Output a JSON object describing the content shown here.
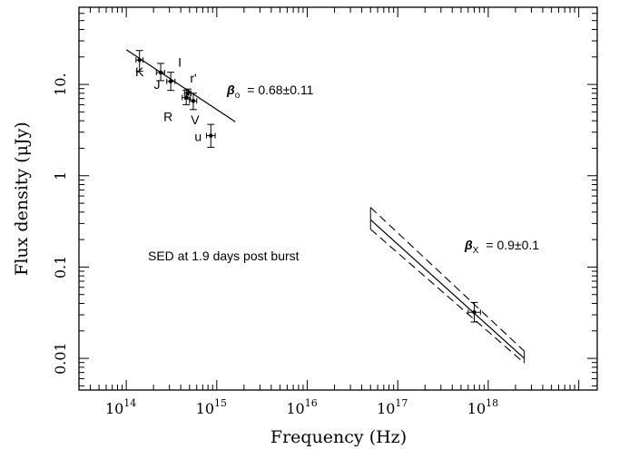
{
  "chart_data": {
    "type": "scatter",
    "title": "",
    "xlabel": "Frequency (Hz)",
    "ylabel": "Flux density (μJy)",
    "x_scale": "log",
    "y_scale": "log",
    "xlim": [
      30000000000000.0,
      1.6e+19
    ],
    "ylim": [
      0.0045,
      70
    ],
    "grid": false,
    "x_ticks": [
      {
        "value": 100000000000000.0,
        "base": "10",
        "exp": "14"
      },
      {
        "value": 1000000000000000.0,
        "base": "10",
        "exp": "15"
      },
      {
        "value": 1e+16,
        "base": "10",
        "exp": "16"
      },
      {
        "value": 1e+17,
        "base": "10",
        "exp": "17"
      },
      {
        "value": 1e+18,
        "base": "10",
        "exp": "18"
      }
    ],
    "y_ticks": [
      {
        "value": 0.01,
        "label": "0.01"
      },
      {
        "value": 0.1,
        "label": "0.1"
      },
      {
        "value": 1,
        "label": "1"
      },
      {
        "value": 10,
        "label": "10."
      }
    ],
    "points": [
      {
        "band": "K",
        "x": 140000000000000.0,
        "y": 18.5,
        "y_lo": 14.0,
        "y_hi": 23.5,
        "x_lo": 128000000000000.0,
        "x_hi": 153000000000000.0
      },
      {
        "band": "J",
        "x": 240000000000000.0,
        "y": 13.5,
        "y_lo": 11.0,
        "y_hi": 17.0,
        "x_lo": 215000000000000.0,
        "x_hi": 265000000000000.0
      },
      {
        "band": "I",
        "x": 310000000000000.0,
        "y": 10.8,
        "y_lo": 8.6,
        "y_hi": 13.6,
        "x_lo": 280000000000000.0,
        "x_hi": 345000000000000.0
      },
      {
        "band": "R",
        "x": 460000000000000.0,
        "y": 7.2,
        "y_lo": 6.0,
        "y_hi": 8.6,
        "x_lo": 415000000000000.0,
        "x_hi": 510000000000000.0
      },
      {
        "band": "r'",
        "x": 480000000000000.0,
        "y": 8.0,
        "y_lo": 6.9,
        "y_hi": 8.9,
        "x_lo": 440000000000000.0,
        "x_hi": 520000000000000.0
      },
      {
        "band": "V",
        "x": 550000000000000.0,
        "y": 6.6,
        "y_lo": 5.3,
        "y_hi": 8.0,
        "x_lo": 500000000000000.0,
        "x_hi": 600000000000000.0
      },
      {
        "band": "u",
        "x": 860000000000000.0,
        "y": 2.75,
        "y_lo": 2.05,
        "y_hi": 3.65,
        "x_lo": 770000000000000.0,
        "x_hi": 960000000000000.0
      },
      {
        "band": "",
        "x": 7e+17,
        "y": 0.032,
        "y_lo": 0.025,
        "y_hi": 0.041,
        "x_lo": 6e+17,
        "x_hi": 8.2e+17
      }
    ],
    "optical_fit": {
      "x": [
        100000000000000.0,
        1600000000000000.0
      ],
      "y": [
        24.0,
        3.9
      ],
      "label_symbol": "β",
      "label_sub": "o",
      "label_value": "= 0.68±0.11"
    },
    "xray_fit": {
      "best": {
        "x": [
          5e+16,
          2.5e+18
        ],
        "y": [
          0.33,
          0.01
        ]
      },
      "upper": {
        "x": [
          5e+16,
          2.5e+18
        ],
        "y": [
          0.45,
          0.012
        ]
      },
      "lower": {
        "x": [
          5e+16,
          2.5e+18
        ],
        "y": [
          0.26,
          0.0089
        ]
      },
      "label_symbol": "β",
      "label_sub": "X",
      "label_value": "= 0.9±0.1"
    },
    "annotation": "SED at 1.9 days post burst"
  }
}
